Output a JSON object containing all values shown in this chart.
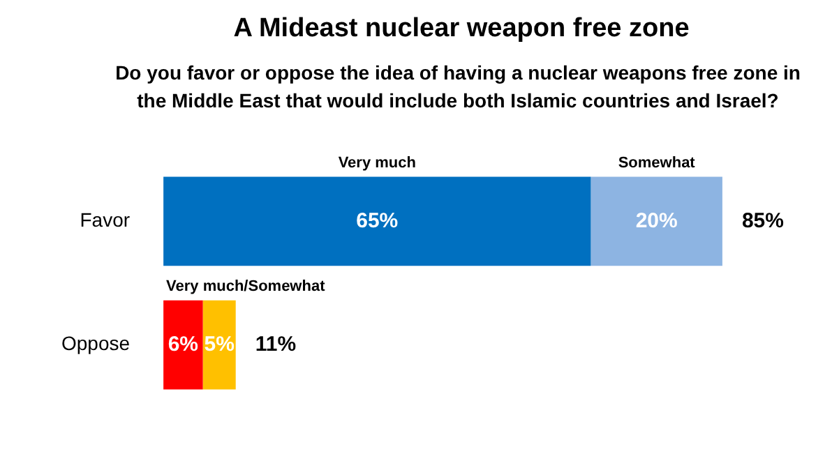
{
  "chart_data": {
    "type": "bar",
    "orientation": "horizontal",
    "stacked": true,
    "title": "A Mideast nuclear weapon free zone",
    "subtitle": "Do you favor or oppose the idea of having a nuclear weapons free zone in the Middle East that would include both Islamic countries and Israel?",
    "categories": [
      "Favor",
      "Oppose"
    ],
    "series": [
      {
        "name": "Very much",
        "colors": [
          "#0070c0",
          "#ff0000"
        ],
        "values": [
          65,
          6
        ],
        "value_labels": [
          "65%",
          "6%"
        ]
      },
      {
        "name": "Somewhat",
        "colors": [
          "#8db4e2",
          "#ffc000"
        ],
        "values": [
          20,
          5
        ],
        "value_labels": [
          "20%",
          "5%"
        ]
      }
    ],
    "totals": [
      "85%",
      "11%"
    ],
    "annotations": [
      "Very much/Somewhat"
    ],
    "legend": false,
    "grid": false
  }
}
